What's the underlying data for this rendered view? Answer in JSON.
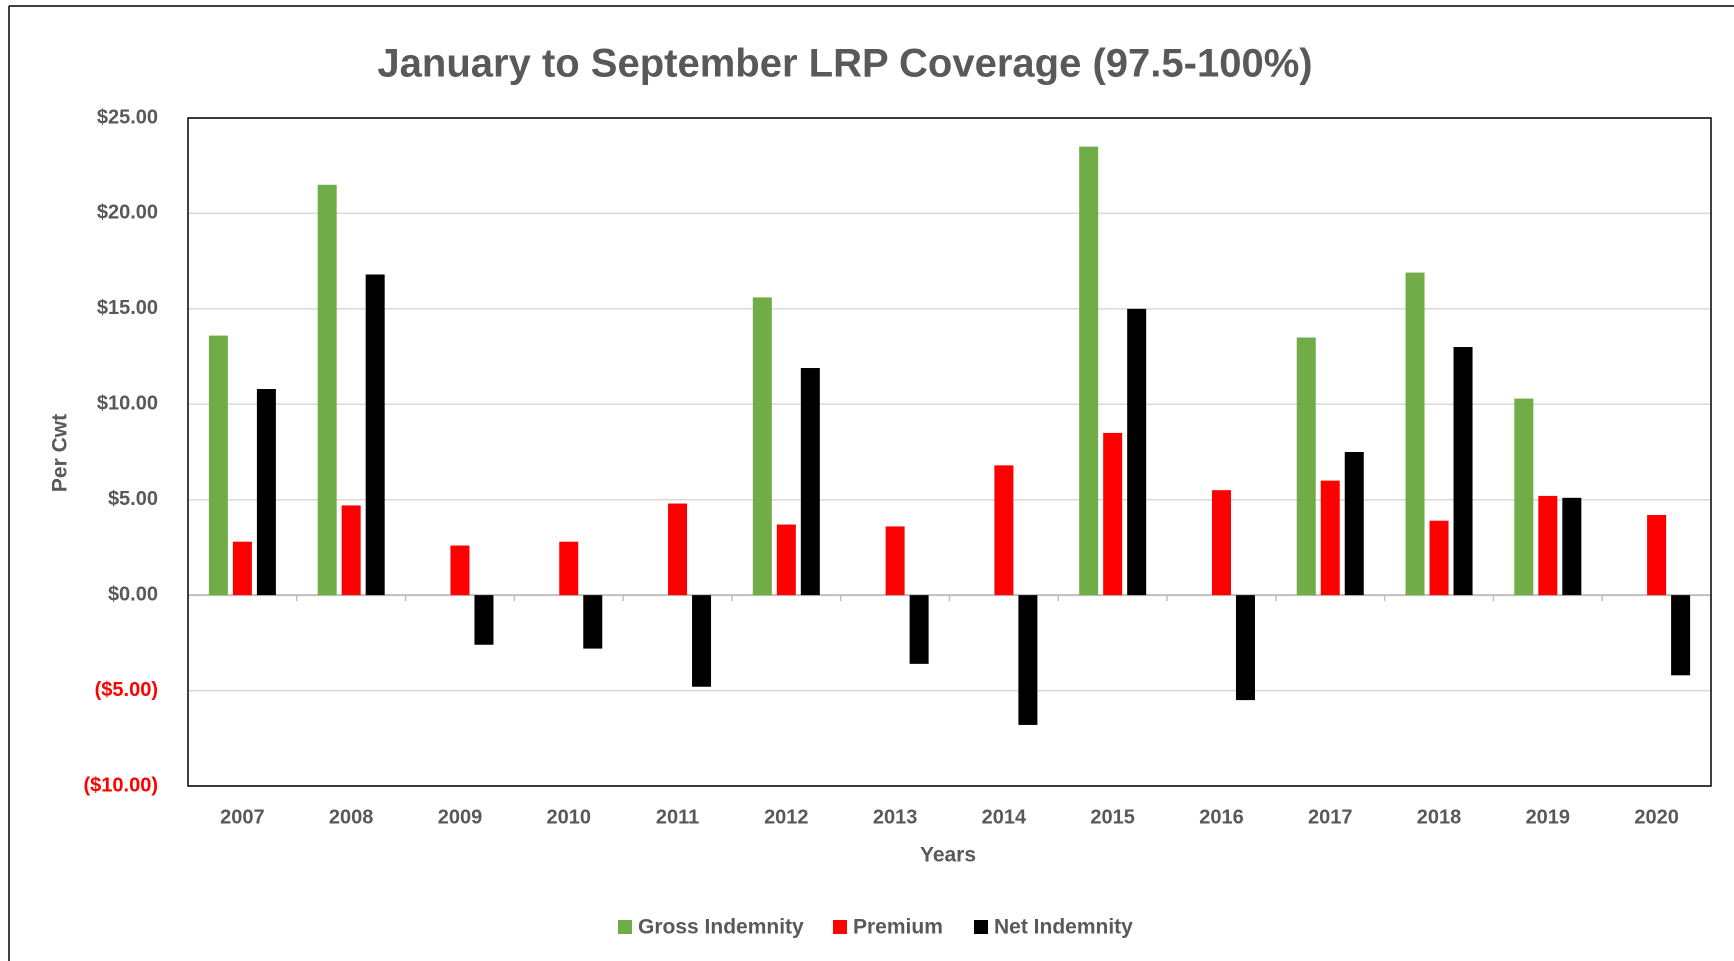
{
  "chart_data": {
    "type": "bar",
    "title": "January to September LRP Coverage (97.5-100%)",
    "x_label": "Years",
    "y_label": "Per Cwt",
    "categories": [
      "2007",
      "2008",
      "2009",
      "2010",
      "2011",
      "2012",
      "2013",
      "2014",
      "2015",
      "2016",
      "2017",
      "2018",
      "2019",
      "2020"
    ],
    "series": [
      {
        "name": "Gross Indemnity",
        "color": "#70ad47",
        "values": [
          13.6,
          21.5,
          0,
          0,
          0,
          15.6,
          0,
          0,
          23.5,
          0,
          13.5,
          16.9,
          10.3,
          0
        ]
      },
      {
        "name": "Premium",
        "color": "#ff0000",
        "values": [
          2.8,
          4.7,
          2.6,
          2.8,
          4.8,
          3.7,
          3.6,
          6.8,
          8.5,
          5.5,
          6.0,
          3.9,
          5.2,
          4.2
        ]
      },
      {
        "name": "Net Indemnity",
        "color": "#000000",
        "values": [
          10.8,
          16.8,
          -2.6,
          -2.8,
          -4.8,
          11.9,
          -3.6,
          -6.8,
          15.0,
          -5.5,
          7.5,
          13.0,
          5.1,
          -4.2
        ]
      }
    ],
    "ylim": [
      -10,
      25
    ],
    "yticks": [
      {
        "value": -10,
        "label": "($10.00)"
      },
      {
        "value": -5,
        "label": "($5.00)"
      },
      {
        "value": 0,
        "label": "$0.00"
      },
      {
        "value": 5,
        "label": "$5.00"
      },
      {
        "value": 10,
        "label": "$10.00"
      },
      {
        "value": 15,
        "label": "$15.00"
      },
      {
        "value": 20,
        "label": "$20.00"
      },
      {
        "value": 25,
        "label": "$25.00"
      }
    ],
    "negative_tick_color": "#ff0000",
    "grid": true,
    "legend": "bottom"
  }
}
